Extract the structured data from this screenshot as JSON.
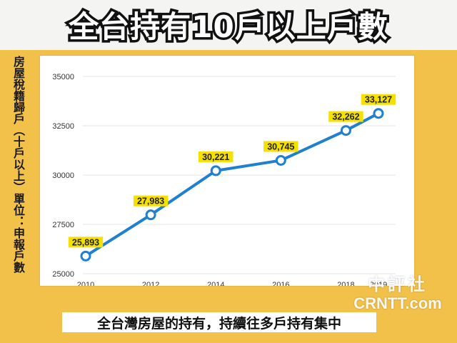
{
  "title": "全台持有10戶以上戶數",
  "caption": "全台灣房屋的持有，持續往多戶持有集中",
  "watermark": {
    "chinese": "中評社",
    "english": "CRNTT.com"
  },
  "colors": {
    "board": "#f2c14a",
    "line": "#1f7fd0",
    "label_bg": "#f5e000"
  },
  "chart_data": {
    "type": "line",
    "title": "全台持有10戶以上戶數",
    "ylabel": "房屋稅籍歸戶（十戶以上）單位：申報戶數",
    "xlabel": "",
    "x": [
      "2010",
      "2012",
      "2014",
      "2016",
      "2018",
      "2019"
    ],
    "xticks": [
      "2010",
      "2012",
      "2014",
      "2016",
      "2018",
      "2019"
    ],
    "series": [
      {
        "values": [
          25893,
          27983,
          30221,
          30745,
          32262,
          33127
        ],
        "labels": [
          "25,893",
          "27,983",
          "30,221",
          "30,745",
          "32,262",
          "33,127"
        ]
      }
    ],
    "yticks": [
      "25000",
      "27500",
      "30000",
      "32500",
      "35000"
    ],
    "ylim": [
      25000,
      35000
    ],
    "grid": true,
    "legend": "none"
  }
}
